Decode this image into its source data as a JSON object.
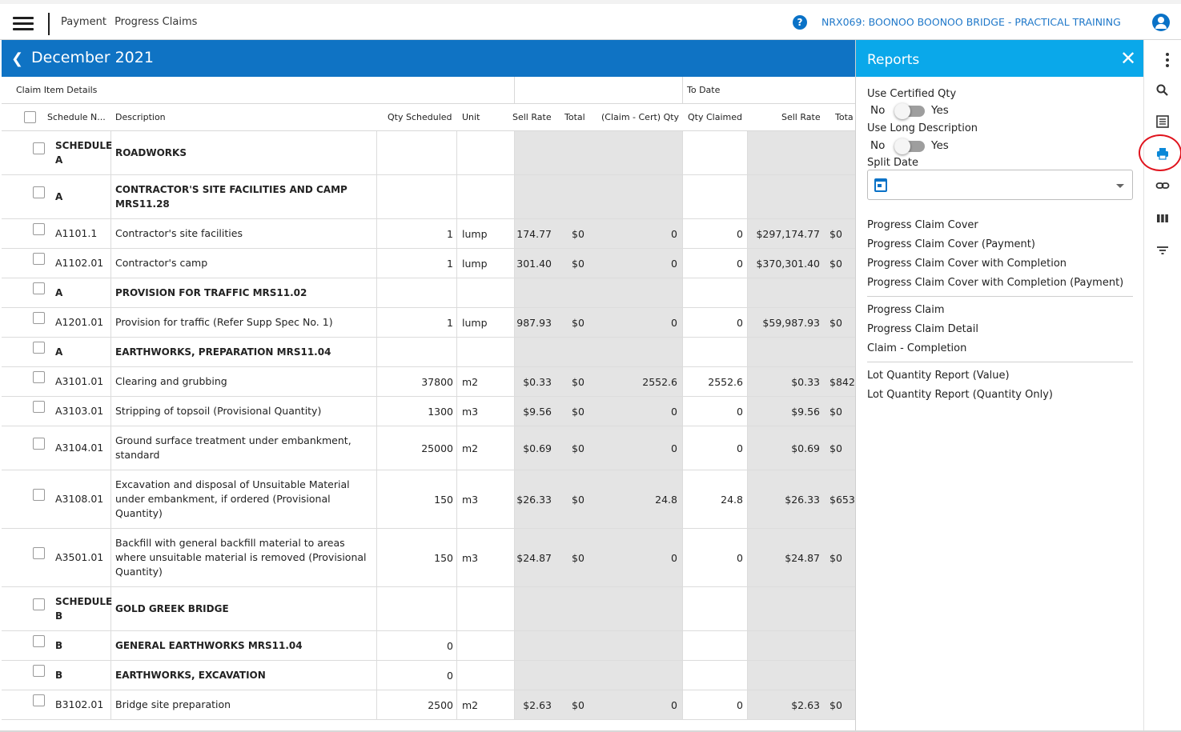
{
  "header": {
    "breadcrumb": [
      "Payment",
      "Progress Claims"
    ],
    "project": "NRX069: BOONOO BOONOO BRIDGE - PRACTICAL TRAINING",
    "help_icon": "help-icon",
    "user_icon": "user-icon"
  },
  "period": {
    "back_icon": "chevron-left-icon",
    "title": "December 2021"
  },
  "table": {
    "group_headers": {
      "left": "Claim Item Details",
      "to_date": "To Date"
    },
    "columns": [
      "Schedule N...",
      "Description",
      "Qty Scheduled",
      "Unit",
      "Sell Rate",
      "Total",
      "(Claim - Cert) Qty",
      "Qty Claimed",
      "Sell Rate",
      "Tota"
    ],
    "rows": [
      {
        "no": "SCHEDULE A",
        "desc": "ROADWORKS",
        "qty": "",
        "unit": "",
        "rate1": "",
        "total1": "",
        "diff": "",
        "claimed": "",
        "rate2": "",
        "total2": "",
        "bold": true
      },
      {
        "no": "A",
        "desc": "CONTRACTOR'S SITE FACILITIES AND CAMP MRS11.28",
        "qty": "",
        "unit": "",
        "rate1": "",
        "total1": "",
        "diff": "",
        "claimed": "",
        "rate2": "",
        "total2": "",
        "bold": true
      },
      {
        "no": "A1101.1",
        "desc": "Contractor's site facilities",
        "qty": "1",
        "unit": "lump",
        "rate1": "174.77",
        "total1": "$0",
        "diff": "0",
        "claimed": "0",
        "rate2": "$297,174.77",
        "total2": "$0",
        "bold": false
      },
      {
        "no": "A1102.01",
        "desc": "Contractor's camp",
        "qty": "1",
        "unit": "lump",
        "rate1": "301.40",
        "total1": "$0",
        "diff": "0",
        "claimed": "0",
        "rate2": "$370,301.40",
        "total2": "$0",
        "bold": false
      },
      {
        "no": "A",
        "desc": "PROVISION FOR TRAFFIC MRS11.02",
        "qty": "",
        "unit": "",
        "rate1": "",
        "total1": "",
        "diff": "",
        "claimed": "",
        "rate2": "",
        "total2": "",
        "bold": true
      },
      {
        "no": "A1201.01",
        "desc": "Provision for traffic (Refer Supp Spec No. 1)",
        "qty": "1",
        "unit": "lump",
        "rate1": "987.93",
        "total1": "$0",
        "diff": "0",
        "claimed": "0",
        "rate2": "$59,987.93",
        "total2": "$0",
        "bold": false
      },
      {
        "no": "A",
        "desc": "EARTHWORKS, PREPARATION MRS11.04",
        "qty": "",
        "unit": "",
        "rate1": "",
        "total1": "",
        "diff": "",
        "claimed": "",
        "rate2": "",
        "total2": "",
        "bold": true
      },
      {
        "no": "A3101.01",
        "desc": "Clearing and grubbing",
        "qty": "37800",
        "unit": "m2",
        "rate1": "$0.33",
        "total1": "$0",
        "diff": "2552.6",
        "claimed": "2552.6",
        "rate2": "$0.33",
        "total2": "$842",
        "bold": false
      },
      {
        "no": "A3103.01",
        "desc": "Stripping of topsoil (Provisional Quantity)",
        "qty": "1300",
        "unit": "m3",
        "rate1": "$9.56",
        "total1": "$0",
        "diff": "0",
        "claimed": "0",
        "rate2": "$9.56",
        "total2": "$0",
        "bold": false
      },
      {
        "no": "A3104.01",
        "desc": "Ground surface treatment under embankment, standard",
        "qty": "25000",
        "unit": "m2",
        "rate1": "$0.69",
        "total1": "$0",
        "diff": "0",
        "claimed": "0",
        "rate2": "$0.69",
        "total2": "$0",
        "bold": false
      },
      {
        "no": "A3108.01",
        "desc": "Excavation and disposal of Unsuitable Material under embankment, if ordered (Provisional Quantity)",
        "qty": "150",
        "unit": "m3",
        "rate1": "$26.33",
        "total1": "$0",
        "diff": "24.8",
        "claimed": "24.8",
        "rate2": "$26.33",
        "total2": "$653",
        "bold": false
      },
      {
        "no": "A3501.01",
        "desc": "Backfill with general backfill material to areas where unsuitable material is removed (Provisional Quantity)",
        "qty": "150",
        "unit": "m3",
        "rate1": "$24.87",
        "total1": "$0",
        "diff": "0",
        "claimed": "0",
        "rate2": "$24.87",
        "total2": "$0",
        "bold": false
      },
      {
        "no": "SCHEDULE B",
        "desc": "GOLD GREEK BRIDGE",
        "qty": "",
        "unit": "",
        "rate1": "",
        "total1": "",
        "diff": "",
        "claimed": "",
        "rate2": "",
        "total2": "",
        "bold": true
      },
      {
        "no": "B",
        "desc": "GENERAL EARTHWORKS MRS11.04",
        "qty": "0",
        "unit": "",
        "rate1": "",
        "total1": "",
        "diff": "",
        "claimed": "",
        "rate2": "",
        "total2": "",
        "bold": true
      },
      {
        "no": "B",
        "desc": "EARTHWORKS, EXCAVATION",
        "qty": "0",
        "unit": "",
        "rate1": "",
        "total1": "",
        "diff": "",
        "claimed": "",
        "rate2": "",
        "total2": "",
        "bold": true
      },
      {
        "no": "B3102.01",
        "desc": "Bridge site preparation",
        "qty": "2500",
        "unit": "m2",
        "rate1": "$2.63",
        "total1": "$0",
        "diff": "0",
        "claimed": "0",
        "rate2": "$2.63",
        "total2": "$0",
        "bold": false
      }
    ]
  },
  "reports": {
    "title": "Reports",
    "close_icon": "close-icon",
    "use_certified_label": "Use Certified Qty",
    "use_long_label": "Use Long Description",
    "no": "No",
    "yes": "Yes",
    "split_date_label": "Split Date",
    "group1": [
      "Progress Claim Cover",
      "Progress Claim Cover (Payment)",
      "Progress Claim Cover with Completion",
      "Progress Claim Cover with Completion (Payment)"
    ],
    "group2": [
      "Progress Claim",
      "Progress Claim Detail",
      "Claim - Completion"
    ],
    "group3": [
      "Lot Quantity Report (Value)",
      "Lot Quantity Report (Quantity Only)"
    ]
  },
  "rail_icons": [
    "more-vert-icon",
    "search-icon",
    "list-icon",
    "print-icon",
    "link-icon",
    "columns-icon",
    "filter-icon"
  ],
  "colors": {
    "blue_header": "#0f73c4",
    "panel_header": "#0aa8ea",
    "link": "#1f78c9",
    "highlight": "#e0141e"
  }
}
